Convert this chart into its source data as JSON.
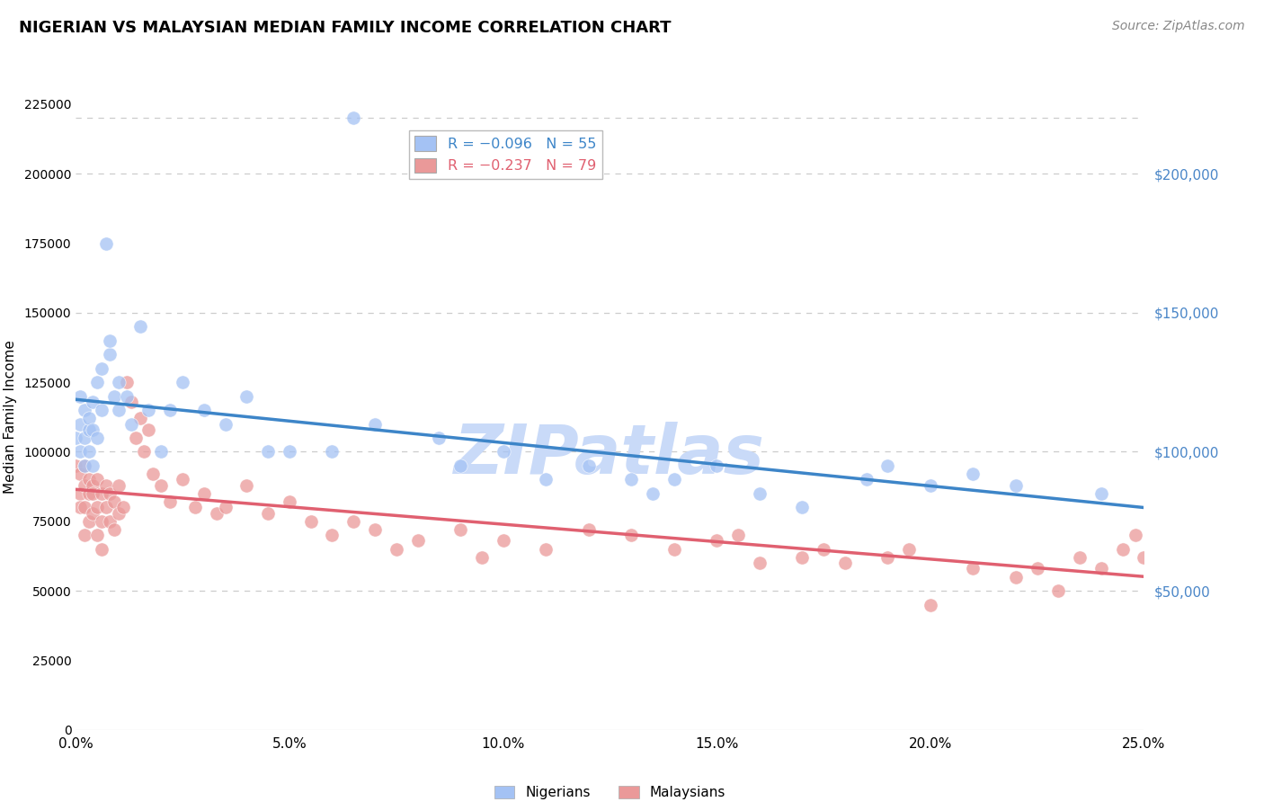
{
  "title": "NIGERIAN VS MALAYSIAN MEDIAN FAMILY INCOME CORRELATION CHART",
  "source_text": "Source: ZipAtlas.com",
  "ylabel": "Median Family Income",
  "xlim": [
    0.0,
    0.25
  ],
  "ylim": [
    0,
    225000
  ],
  "yticks": [
    0,
    50000,
    100000,
    150000,
    200000
  ],
  "ytick_labels": [
    "",
    "$50,000",
    "$100,000",
    "$150,000",
    "$200,000"
  ],
  "xtick_labels": [
    "0.0%",
    "5.0%",
    "10.0%",
    "15.0%",
    "20.0%",
    "25.0%"
  ],
  "xticks": [
    0.0,
    0.05,
    0.1,
    0.15,
    0.2,
    0.25
  ],
  "nigerian_color": "#a4c2f4",
  "malaysian_color": "#ea9999",
  "nigerian_line_color": "#3d85c8",
  "malaysian_line_color": "#e06070",
  "legend_label_nigerian": "Nigerians",
  "legend_label_malaysian": "Malaysians",
  "watermark": "ZIPatlas",
  "watermark_color": "#c9daf8",
  "axis_label_color": "#4a86c8",
  "title_color": "#000000",
  "nigerian_x": [
    0.0,
    0.001,
    0.001,
    0.001,
    0.002,
    0.002,
    0.002,
    0.003,
    0.003,
    0.003,
    0.004,
    0.004,
    0.004,
    0.005,
    0.005,
    0.006,
    0.006,
    0.007,
    0.008,
    0.008,
    0.009,
    0.01,
    0.01,
    0.012,
    0.013,
    0.015,
    0.017,
    0.02,
    0.022,
    0.025,
    0.03,
    0.035,
    0.04,
    0.045,
    0.05,
    0.06,
    0.065,
    0.07,
    0.085,
    0.09,
    0.1,
    0.11,
    0.12,
    0.13,
    0.135,
    0.14,
    0.15,
    0.16,
    0.17,
    0.185,
    0.19,
    0.2,
    0.21,
    0.22,
    0.24
  ],
  "nigerian_y": [
    105000,
    100000,
    110000,
    120000,
    95000,
    105000,
    115000,
    108000,
    100000,
    112000,
    95000,
    118000,
    108000,
    125000,
    105000,
    130000,
    115000,
    175000,
    135000,
    140000,
    120000,
    115000,
    125000,
    120000,
    110000,
    145000,
    115000,
    100000,
    115000,
    125000,
    115000,
    110000,
    120000,
    100000,
    100000,
    100000,
    220000,
    110000,
    105000,
    95000,
    100000,
    90000,
    95000,
    90000,
    85000,
    90000,
    95000,
    85000,
    80000,
    90000,
    95000,
    88000,
    92000,
    88000,
    85000
  ],
  "malaysian_x": [
    0.0,
    0.001,
    0.001,
    0.001,
    0.002,
    0.002,
    0.002,
    0.002,
    0.003,
    0.003,
    0.003,
    0.004,
    0.004,
    0.004,
    0.005,
    0.005,
    0.005,
    0.006,
    0.006,
    0.006,
    0.007,
    0.007,
    0.008,
    0.008,
    0.009,
    0.009,
    0.01,
    0.01,
    0.011,
    0.012,
    0.013,
    0.014,
    0.015,
    0.016,
    0.017,
    0.018,
    0.02,
    0.022,
    0.025,
    0.028,
    0.03,
    0.033,
    0.035,
    0.04,
    0.045,
    0.05,
    0.055,
    0.06,
    0.065,
    0.07,
    0.075,
    0.08,
    0.09,
    0.095,
    0.1,
    0.11,
    0.12,
    0.13,
    0.14,
    0.15,
    0.155,
    0.16,
    0.17,
    0.175,
    0.18,
    0.19,
    0.195,
    0.2,
    0.21,
    0.22,
    0.225,
    0.23,
    0.235,
    0.24,
    0.245,
    0.248,
    0.25,
    0.252,
    0.255
  ],
  "malaysian_y": [
    95000,
    85000,
    92000,
    80000,
    88000,
    95000,
    80000,
    70000,
    90000,
    85000,
    75000,
    88000,
    78000,
    85000,
    90000,
    80000,
    70000,
    85000,
    75000,
    65000,
    88000,
    80000,
    85000,
    75000,
    82000,
    72000,
    78000,
    88000,
    80000,
    125000,
    118000,
    105000,
    112000,
    100000,
    108000,
    92000,
    88000,
    82000,
    90000,
    80000,
    85000,
    78000,
    80000,
    88000,
    78000,
    82000,
    75000,
    70000,
    75000,
    72000,
    65000,
    68000,
    72000,
    62000,
    68000,
    65000,
    72000,
    70000,
    65000,
    68000,
    70000,
    60000,
    62000,
    65000,
    60000,
    62000,
    65000,
    45000,
    58000,
    55000,
    58000,
    50000,
    62000,
    58000,
    65000,
    70000,
    62000,
    58000,
    63000
  ]
}
